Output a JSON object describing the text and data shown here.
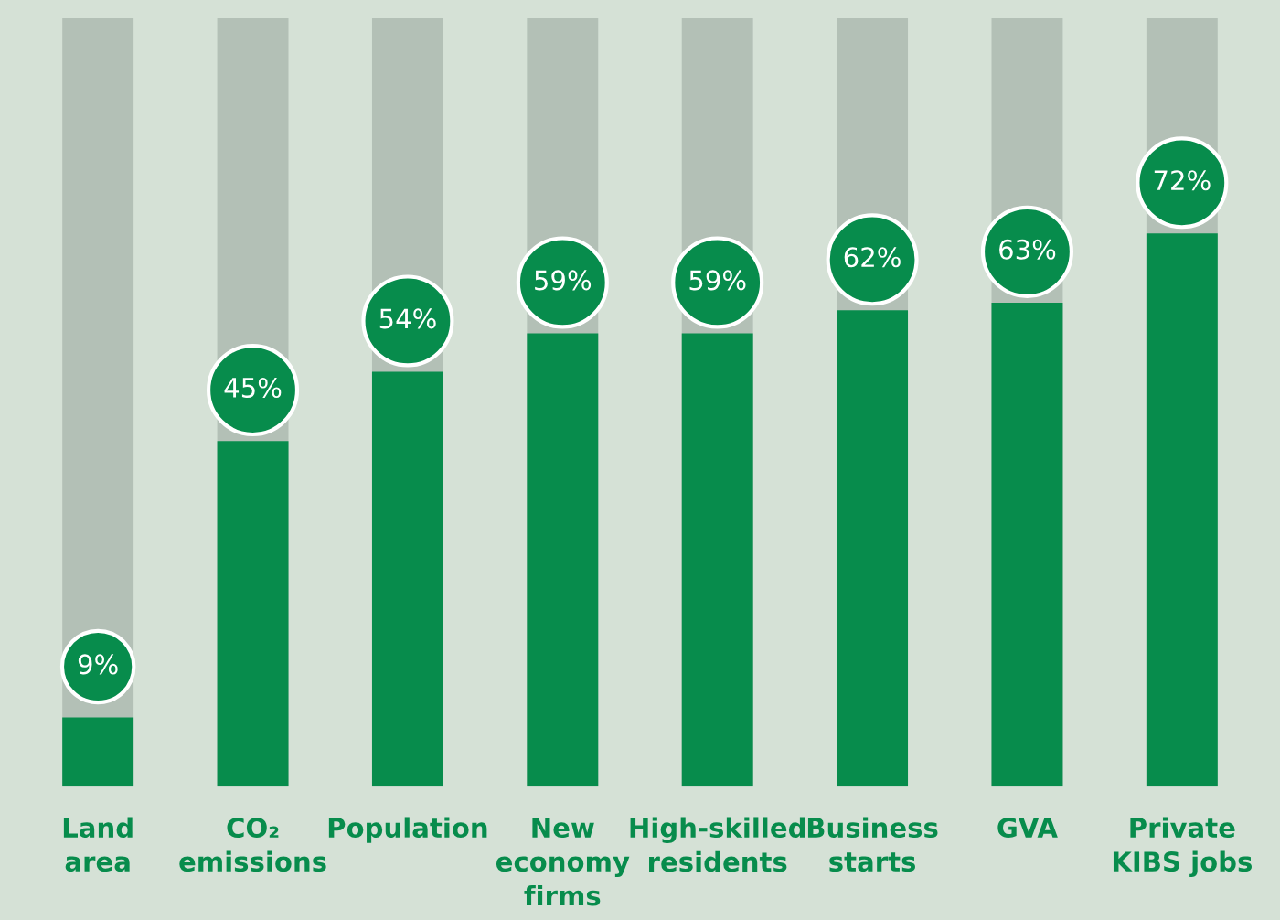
{
  "chart_data": {
    "type": "bar",
    "categories": [
      "Land\narea",
      "CO₂\nemissions",
      "Population",
      "New\neconomy\nfirms",
      "High-skilled\nresidents",
      "Business\nstarts",
      "GVA",
      "Private\nKIBS jobs"
    ],
    "series": [
      {
        "color": "#078c4c",
        "values": [
          9,
          45,
          54,
          59,
          59,
          62,
          63,
          72
        ],
        "value_labels": [
          "9%",
          "45%",
          "54%",
          "59%",
          "59%",
          "62%",
          "63%",
          "72%"
        ]
      }
    ],
    "ylim": [
      0,
      100
    ],
    "grid": false,
    "legend": false
  }
}
